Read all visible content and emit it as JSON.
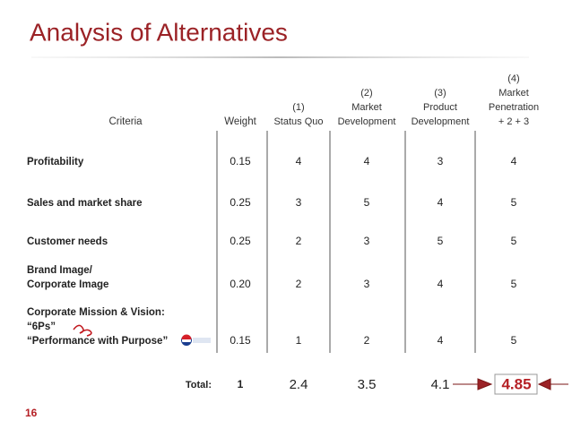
{
  "header": {
    "title": "Analysis of Alternatives"
  },
  "table": {
    "columns": [
      [
        "Criteria"
      ],
      [
        "Weight"
      ],
      [
        "(1)",
        "Status Quo"
      ],
      [
        "(2)",
        "Market",
        "Development"
      ],
      [
        "(3)",
        "Product",
        "Development"
      ],
      [
        "(4)",
        "Market",
        "Penetration",
        "+ 2 + 3"
      ]
    ],
    "rows": [
      [
        [
          "Profitability"
        ],
        "0.15",
        "4",
        "4",
        "3",
        "4"
      ],
      [
        [
          "Sales and market share"
        ],
        "0.25",
        "3",
        "5",
        "4",
        "5"
      ],
      [
        [
          "Customer needs"
        ],
        "0.25",
        "2",
        "3",
        "5",
        "5"
      ],
      [
        [
          "Brand Image/",
          "Corporate Image"
        ],
        "0.20",
        "2",
        "3",
        "4",
        "5"
      ],
      [
        [
          "Corporate Mission & Vision:",
          "“6Ps”",
          "“Performance with Purpose”"
        ],
        "0.15",
        "1",
        "2",
        "4",
        "5"
      ]
    ],
    "total": {
      "label": "Total:",
      "values": [
        "1",
        "2.4",
        "3.5",
        "4.1",
        "4.85"
      ]
    }
  },
  "footer": {
    "page": "16"
  }
}
